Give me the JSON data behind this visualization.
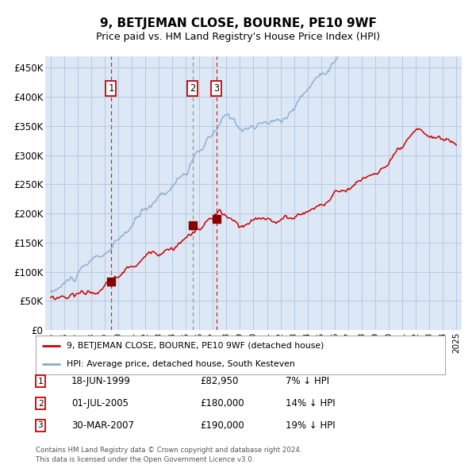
{
  "title": "9, BETJEMAN CLOSE, BOURNE, PE10 9WF",
  "subtitle": "Price paid vs. HM Land Registry's House Price Index (HPI)",
  "legend_line1": "9, BETJEMAN CLOSE, BOURNE, PE10 9WF (detached house)",
  "legend_line2": "HPI: Average price, detached house, South Kesteven",
  "footer_line1": "Contains HM Land Registry data © Crown copyright and database right 2024.",
  "footer_line2": "This data is licensed under the Open Government Licence v3.0.",
  "transactions": [
    {
      "num": 1,
      "date": "18-JUN-1999",
      "price": "£82,950",
      "hpi": "7% ↓ HPI",
      "x_year": 1999.46,
      "y_val": 82950,
      "vline_style": "red"
    },
    {
      "num": 2,
      "date": "01-JUL-2005",
      "price": "£180,000",
      "hpi": "14% ↓ HPI",
      "x_year": 2005.5,
      "y_val": 180000,
      "vline_style": "gray"
    },
    {
      "num": 3,
      "date": "30-MAR-2007",
      "price": "£190,000",
      "hpi": "19% ↓ HPI",
      "x_year": 2007.25,
      "y_val": 190000,
      "vline_style": "red"
    }
  ],
  "red_line_color": "#cc0000",
  "blue_line_color": "#88aacc",
  "background_color": "#dce8f5",
  "grid_color": "#b0c4de",
  "vline_red_color": "#cc0000",
  "vline_gray_color": "#888888",
  "marker_color": "#880000",
  "box_border_color": "#cc0000",
  "fig_bg_color": "#ffffff",
  "ylim": [
    0,
    470000
  ],
  "xlim_start": 1994.6,
  "xlim_end": 2025.4,
  "yticks": [
    0,
    50000,
    100000,
    150000,
    200000,
    250000,
    300000,
    350000,
    400000,
    450000
  ],
  "ytick_labels": [
    "£0",
    "£50K",
    "£100K",
    "£150K",
    "£200K",
    "£250K",
    "£300K",
    "£350K",
    "£400K",
    "£450K"
  ],
  "xtick_years": [
    1995,
    1996,
    1997,
    1998,
    1999,
    2000,
    2001,
    2002,
    2003,
    2004,
    2005,
    2006,
    2007,
    2008,
    2009,
    2010,
    2011,
    2012,
    2013,
    2014,
    2015,
    2016,
    2017,
    2018,
    2019,
    2020,
    2021,
    2022,
    2023,
    2024,
    2025
  ]
}
